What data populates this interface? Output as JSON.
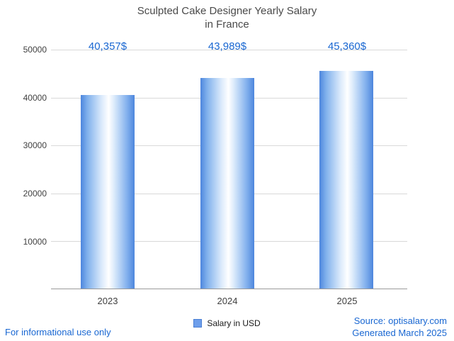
{
  "chart_data": {
    "type": "bar",
    "title": "Sculpted Cake Designer Yearly Salary in France",
    "title_lines": [
      "Sculpted Cake Designer Yearly Salary",
      "in France"
    ],
    "categories": [
      "2023",
      "2024",
      "2025"
    ],
    "values": [
      40357,
      43989,
      45360
    ],
    "value_labels": [
      "40,357$",
      "43,989$",
      "45,360$"
    ],
    "xlabel": "",
    "ylabel": "",
    "ylim": [
      0,
      50000
    ],
    "yticks": [
      50000,
      40000,
      30000,
      20000,
      10000
    ],
    "ytick_labels": [
      "50000",
      "40000",
      "30000",
      "20000",
      "10000"
    ],
    "grid": true,
    "legend_position": "bottom",
    "bar_edge_color": "#4d86dd",
    "bar_center_color": "#ffffff",
    "value_label_color": "#1967d2"
  },
  "legend": {
    "label": "Salary in USD"
  },
  "footer": {
    "left_note": "For informational use only",
    "source": "Source: optisalary.com",
    "generated": "Generated March 2025"
  }
}
